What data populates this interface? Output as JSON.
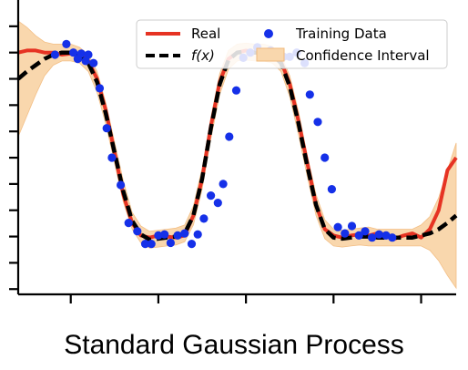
{
  "caption": "Standard Gaussian Process",
  "chart_data": {
    "type": "line",
    "title": "",
    "xlabel": "",
    "ylabel": "",
    "xlim": [
      -2.6,
      2.4
    ],
    "ylim": [
      -1.3,
      1.5
    ],
    "x_ticks": [
      -2,
      -1,
      0,
      1,
      2
    ],
    "y_ticks": [
      -1.25,
      -1.0,
      -0.75,
      -0.5,
      -0.25,
      0.0,
      0.25,
      0.5,
      0.75,
      1.0,
      1.25
    ],
    "legend_position": "top-right",
    "legend": [
      {
        "label": "Real",
        "style": "line",
        "color": "#e63323"
      },
      {
        "label": "f(x)",
        "style": "dashed",
        "color": "#000000"
      },
      {
        "label": "Training Data",
        "style": "marker",
        "color": "#1530e8"
      },
      {
        "label": "Confidence Interval",
        "style": "patch",
        "color": "#f9d7ad"
      }
    ],
    "series": [
      {
        "name": "Real",
        "color": "#e63323",
        "x": [
          -2.6,
          -2.5,
          -2.4,
          -2.3,
          -2.2,
          -2.1,
          -2.0,
          -1.9,
          -1.8,
          -1.7,
          -1.6,
          -1.5,
          -1.4,
          -1.3,
          -1.2,
          -1.1,
          -1.0,
          -0.9,
          -0.8,
          -0.7,
          -0.6,
          -0.5,
          -0.4,
          -0.3,
          -0.2,
          -0.1,
          0.0,
          0.1,
          0.2,
          0.3,
          0.4,
          0.5,
          0.6,
          0.7,
          0.8,
          0.9,
          1.0,
          1.1,
          1.2,
          1.3,
          1.4,
          1.5,
          1.6,
          1.7,
          1.8,
          1.9,
          2.0,
          2.1,
          2.2,
          2.3,
          2.4
        ],
        "y": [
          1.0,
          1.02,
          1.02,
          1.0,
          1.0,
          0.98,
          0.99,
          0.98,
          0.92,
          0.75,
          0.45,
          0.05,
          -0.35,
          -0.62,
          -0.74,
          -0.76,
          -0.74,
          -0.75,
          -0.76,
          -0.74,
          -0.55,
          -0.2,
          0.3,
          0.72,
          0.94,
          1.0,
          1.02,
          1.0,
          1.0,
          0.99,
          0.92,
          0.7,
          0.35,
          -0.05,
          -0.45,
          -0.68,
          -0.74,
          -0.76,
          -0.74,
          -0.73,
          -0.74,
          -0.72,
          -0.73,
          -0.77,
          -0.74,
          -0.72,
          -0.76,
          -0.68,
          -0.5,
          -0.12,
          0.0
        ]
      },
      {
        "name": "f(x)",
        "color": "#000000",
        "x": [
          -2.6,
          -2.5,
          -2.4,
          -2.3,
          -2.2,
          -2.1,
          -2.0,
          -1.9,
          -1.8,
          -1.7,
          -1.6,
          -1.5,
          -1.4,
          -1.3,
          -1.2,
          -1.1,
          -1.0,
          -0.9,
          -0.8,
          -0.7,
          -0.6,
          -0.5,
          -0.4,
          -0.3,
          -0.2,
          -0.1,
          0.0,
          0.1,
          0.2,
          0.3,
          0.4,
          0.5,
          0.6,
          0.7,
          0.8,
          0.9,
          1.0,
          1.1,
          1.2,
          1.3,
          1.4,
          1.5,
          1.6,
          1.7,
          1.8,
          1.9,
          2.0,
          2.1,
          2.2,
          2.3,
          2.4
        ],
        "y": [
          0.75,
          0.82,
          0.88,
          0.94,
          0.98,
          1.0,
          1.0,
          0.97,
          0.9,
          0.72,
          0.42,
          0.05,
          -0.32,
          -0.6,
          -0.73,
          -0.78,
          -0.77,
          -0.76,
          -0.75,
          -0.72,
          -0.55,
          -0.2,
          0.28,
          0.7,
          0.93,
          1.0,
          1.01,
          1.0,
          1.0,
          0.98,
          0.9,
          0.68,
          0.33,
          -0.08,
          -0.45,
          -0.68,
          -0.76,
          -0.77,
          -0.76,
          -0.75,
          -0.75,
          -0.76,
          -0.76,
          -0.76,
          -0.76,
          -0.76,
          -0.74,
          -0.72,
          -0.68,
          -0.62,
          -0.55
        ]
      }
    ],
    "confidence_interval": {
      "name": "Confidence Interval",
      "color": "#f9d7ad",
      "x": [
        -2.6,
        -2.5,
        -2.4,
        -2.3,
        -2.2,
        -2.1,
        -2.0,
        -1.9,
        -1.8,
        -1.7,
        -1.6,
        -1.5,
        -1.4,
        -1.3,
        -1.2,
        -1.1,
        -1.0,
        -0.9,
        -0.8,
        -0.7,
        -0.6,
        -0.5,
        -0.4,
        -0.3,
        -0.2,
        -0.1,
        0.0,
        0.1,
        0.2,
        0.3,
        0.4,
        0.5,
        0.6,
        0.7,
        0.8,
        0.9,
        1.0,
        1.1,
        1.2,
        1.3,
        1.4,
        1.5,
        1.6,
        1.7,
        1.8,
        1.9,
        2.0,
        2.1,
        2.2,
        2.3,
        2.4
      ],
      "lower": [
        0.2,
        0.4,
        0.6,
        0.78,
        0.88,
        0.92,
        0.92,
        0.9,
        0.82,
        0.62,
        0.32,
        -0.05,
        -0.42,
        -0.68,
        -0.81,
        -0.86,
        -0.85,
        -0.84,
        -0.83,
        -0.8,
        -0.64,
        -0.3,
        0.18,
        0.6,
        0.84,
        0.92,
        0.93,
        0.92,
        0.92,
        0.9,
        0.82,
        0.58,
        0.22,
        -0.18,
        -0.55,
        -0.77,
        -0.84,
        -0.85,
        -0.84,
        -0.83,
        -0.84,
        -0.84,
        -0.84,
        -0.84,
        -0.84,
        -0.84,
        -0.84,
        -0.88,
        -0.98,
        -1.12,
        -1.24
      ],
      "upper": [
        1.3,
        1.24,
        1.16,
        1.1,
        1.08,
        1.08,
        1.08,
        1.05,
        0.98,
        0.82,
        0.52,
        0.15,
        -0.22,
        -0.52,
        -0.65,
        -0.7,
        -0.69,
        -0.68,
        -0.67,
        -0.64,
        -0.46,
        -0.1,
        0.38,
        0.8,
        1.02,
        1.08,
        1.09,
        1.08,
        1.08,
        1.06,
        0.98,
        0.78,
        0.44,
        0.02,
        -0.35,
        -0.59,
        -0.68,
        -0.69,
        -0.68,
        -0.67,
        -0.66,
        -0.68,
        -0.68,
        -0.68,
        -0.68,
        -0.68,
        -0.64,
        -0.56,
        -0.38,
        -0.12,
        0.14
      ]
    },
    "training_data": {
      "name": "Training Data",
      "color": "#1530e8",
      "x": [
        -2.18,
        -2.05,
        -1.97,
        -1.92,
        -1.88,
        -1.83,
        -1.8,
        -1.74,
        -1.67,
        -1.59,
        -1.53,
        -1.43,
        -1.34,
        -1.24,
        -1.15,
        -1.08,
        -1.0,
        -0.93,
        -0.86,
        -0.78,
        -0.7,
        -0.62,
        -0.55,
        -0.48,
        -0.4,
        -0.32,
        -0.26,
        -0.19,
        -0.11,
        -0.03,
        0.05,
        0.13,
        0.2,
        0.28,
        0.35,
        0.43,
        0.5,
        0.58,
        0.67,
        0.73,
        0.82,
        0.9,
        0.98,
        1.05,
        1.13,
        1.21,
        1.29,
        1.36,
        1.44,
        1.52,
        1.6,
        1.67
      ],
      "y": [
        0.98,
        1.08,
        1.0,
        0.94,
        0.99,
        0.92,
        0.98,
        0.9,
        0.66,
        0.28,
        0.0,
        -0.26,
        -0.62,
        -0.7,
        -0.82,
        -0.82,
        -0.74,
        -0.73,
        -0.81,
        -0.74,
        -0.72,
        -0.82,
        -0.73,
        -0.58,
        -0.36,
        -0.43,
        -0.25,
        0.2,
        0.64,
        0.95,
        1.0,
        1.05,
        1.0,
        1.02,
        1.0,
        0.96,
        0.96,
        1.0,
        0.9,
        0.6,
        0.34,
        0.0,
        -0.3,
        -0.66,
        -0.72,
        -0.65,
        -0.74,
        -0.7,
        -0.76,
        -0.73,
        -0.74,
        -0.76
      ]
    }
  }
}
